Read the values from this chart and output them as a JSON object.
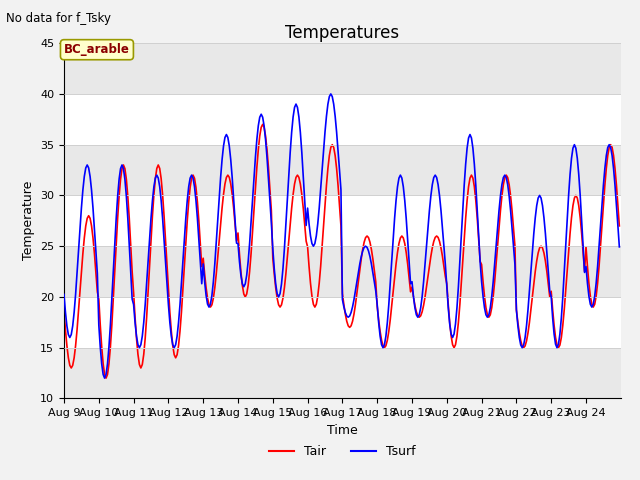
{
  "title": "Temperatures",
  "suptitle": "No data for f_Tsky",
  "xlabel": "Time",
  "ylabel": "Temperature",
  "ylim": [
    10,
    45
  ],
  "yticks": [
    10,
    15,
    20,
    25,
    30,
    35,
    40,
    45
  ],
  "xtick_labels": [
    "Aug 9",
    "Aug 10",
    "Aug 11",
    "Aug 12",
    "Aug 13",
    "Aug 14",
    "Aug 15",
    "Aug 16",
    "Aug 17",
    "Aug 18",
    "Aug 19",
    "Aug 20",
    "Aug 21",
    "Aug 22",
    "Aug 23",
    "Aug 24"
  ],
  "legend_labels": [
    "Tair",
    "Tsurf"
  ],
  "tair_color": "red",
  "tsurf_color": "blue",
  "annotation_text": "BC_arable",
  "grid_color": "#d0d0d0",
  "bg_color": "#ffffff",
  "band_color": "#e8e8e8",
  "fig_color": "#f2f2f2",
  "title_fontsize": 12,
  "axis_label_fontsize": 9,
  "tick_fontsize": 8,
  "day_mins_air": [
    13,
    12,
    13,
    14,
    19,
    20,
    19,
    19,
    17,
    15,
    18,
    15,
    18,
    15,
    15,
    19
  ],
  "day_maxs_air": [
    28,
    33,
    33,
    32,
    32,
    37,
    32,
    35,
    26,
    26,
    26,
    32,
    32,
    25,
    30,
    35
  ],
  "day_mins_surf": [
    16,
    12,
    15,
    15,
    19,
    21,
    20,
    25,
    18,
    15,
    18,
    16,
    18,
    15,
    15,
    19
  ],
  "day_maxs_surf": [
    33,
    33,
    32,
    32,
    36,
    38,
    39,
    40,
    25,
    32,
    32,
    36,
    32,
    30,
    35,
    35
  ]
}
